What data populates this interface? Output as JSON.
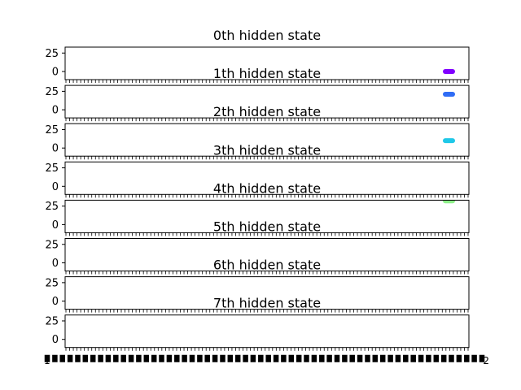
{
  "chart_data": [
    {
      "type": "scatter",
      "title": "0th hidden state",
      "yticks": [
        "25",
        "0"
      ],
      "ylim": [
        -11,
        33
      ],
      "series": [
        {
          "color": "#8000ff",
          "y": [
            0
          ]
        }
      ]
    },
    {
      "type": "scatter",
      "title": "1th hidden state",
      "yticks": [
        "25",
        "0"
      ],
      "ylim": [
        -11,
        33
      ],
      "series": [
        {
          "color": "#2f6cf5",
          "y": [
            21
          ]
        }
      ]
    },
    {
      "type": "scatter",
      "title": "2th hidden state",
      "yticks": [
        "25",
        "0"
      ],
      "ylim": [
        -11,
        33
      ],
      "series": [
        {
          "color": "#1fc8e8",
          "y": [
            10
          ]
        }
      ]
    },
    {
      "type": "scatter",
      "title": "3th hidden state",
      "yticks": [
        "25",
        "0"
      ],
      "ylim": [
        -11,
        33
      ],
      "series": []
    },
    {
      "type": "scatter",
      "title": "4th hidden state",
      "yticks": [
        "25",
        "0"
      ],
      "ylim": [
        -11,
        33
      ],
      "series": [
        {
          "color": "#8ef08a",
          "y": [
            32
          ]
        }
      ]
    },
    {
      "type": "scatter",
      "title": "5th hidden state",
      "yticks": [
        "25",
        "0"
      ],
      "ylim": [
        -11,
        33
      ],
      "series": []
    },
    {
      "type": "scatter",
      "title": "6th hidden state",
      "yticks": [
        "25",
        "0"
      ],
      "ylim": [
        -11,
        33
      ],
      "series": []
    },
    {
      "type": "scatter",
      "title": "7th hidden state",
      "yticks": [
        "25",
        "0"
      ],
      "ylim": [
        -11,
        33
      ],
      "series": []
    }
  ],
  "x_axis": {
    "tick_labels_left": "1",
    "tick_labels_right": "2"
  }
}
